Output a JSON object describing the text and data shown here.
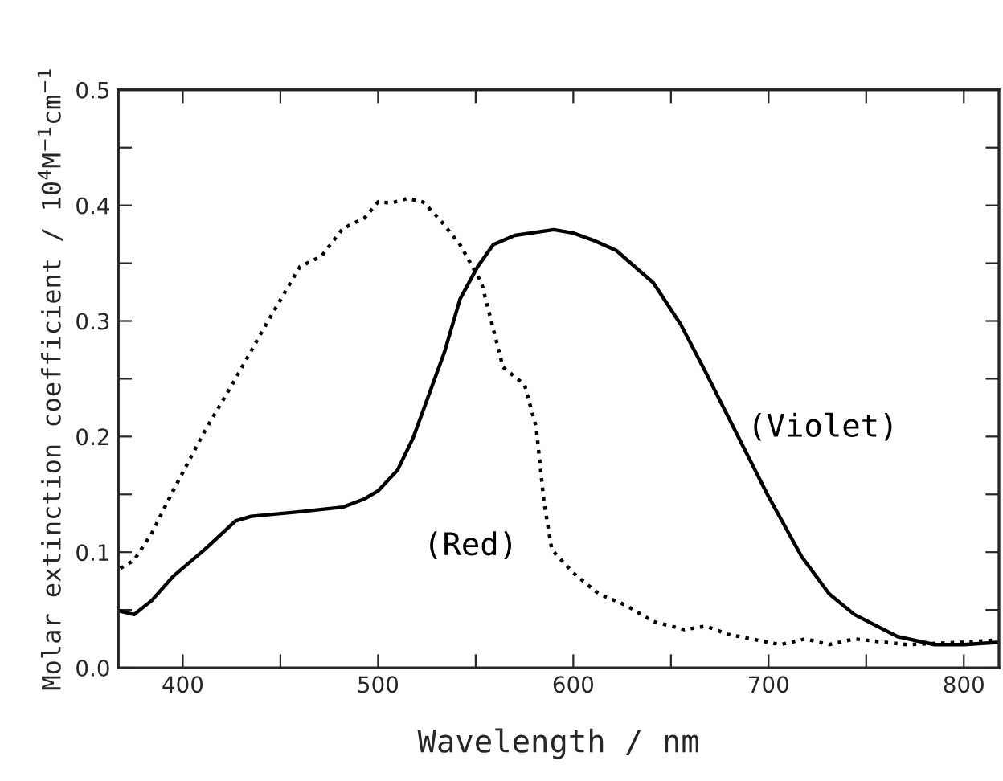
{
  "chart_data": {
    "type": "line",
    "xlabel": "Wavelength / nm",
    "ylabel": "Molar extinction coefficient / 10$^{4}$M$^{−1}$cm$^{−1}$",
    "xlim": [
      367,
      818
    ],
    "ylim": [
      0,
      0.5
    ],
    "xticks": [
      400,
      {
        "value": 450,
        "label": null
      },
      500,
      {
        "value": 550,
        "label": null
      },
      600,
      {
        "value": 650,
        "label": null
      },
      700,
      {
        "value": 750,
        "label": null
      },
      800
    ],
    "yticks": [
      {
        "value": 0,
        "label": "0.0"
      },
      {
        "value": 0.05,
        "label": null
      },
      0.1,
      {
        "value": 0.15,
        "label": null
      },
      0.2,
      {
        "value": 0.25,
        "label": null
      },
      0.3,
      {
        "value": 0.35,
        "label": null
      },
      0.4,
      {
        "value": 0.45,
        "label": null
      },
      0.5
    ],
    "grid": false,
    "legend": false,
    "series": [
      {
        "name": "(Red)",
        "color": "#000000",
        "line_style": "dotted",
        "x": [
          368,
          375,
          384,
          395,
          411,
          427,
          444,
          460,
          471,
          482,
          493,
          500,
          507,
          515,
          523,
          531,
          542,
          553,
          564,
          575,
          581,
          585,
          589,
          600,
          613,
          627,
          641,
          657,
          668,
          679,
          700,
          706,
          719,
          731,
          744,
          760,
          771,
          799,
          817
        ],
        "values": [
          0.086,
          0.093,
          0.116,
          0.153,
          0.204,
          0.25,
          0.301,
          0.347,
          0.356,
          0.38,
          0.389,
          0.403,
          0.402,
          0.406,
          0.403,
          0.389,
          0.366,
          0.333,
          0.26,
          0.245,
          0.208,
          0.143,
          0.102,
          0.082,
          0.064,
          0.054,
          0.04,
          0.033,
          0.036,
          0.029,
          0.022,
          0.02,
          0.025,
          0.02,
          0.025,
          0.022,
          0.02,
          0.022,
          0.024
        ]
      },
      {
        "name": "(Violet)",
        "color": "#000000",
        "line_style": "solid",
        "x": [
          368,
          375,
          384,
          395,
          411,
          427,
          435,
          460,
          482,
          493,
          500,
          510,
          518,
          526,
          534,
          542,
          551,
          559,
          570,
          590,
          600,
          610,
          622,
          641,
          655,
          668,
          682,
          700,
          717,
          731,
          744,
          766,
          785,
          800,
          817
        ],
        "values": [
          0.049,
          0.046,
          0.058,
          0.079,
          0.102,
          0.127,
          0.131,
          0.135,
          0.139,
          0.146,
          0.153,
          0.171,
          0.199,
          0.236,
          0.273,
          0.319,
          0.347,
          0.366,
          0.374,
          0.379,
          0.376,
          0.37,
          0.361,
          0.333,
          0.297,
          0.255,
          0.208,
          0.148,
          0.096,
          0.064,
          0.046,
          0.027,
          0.02,
          0.02,
          0.022
        ]
      }
    ]
  }
}
